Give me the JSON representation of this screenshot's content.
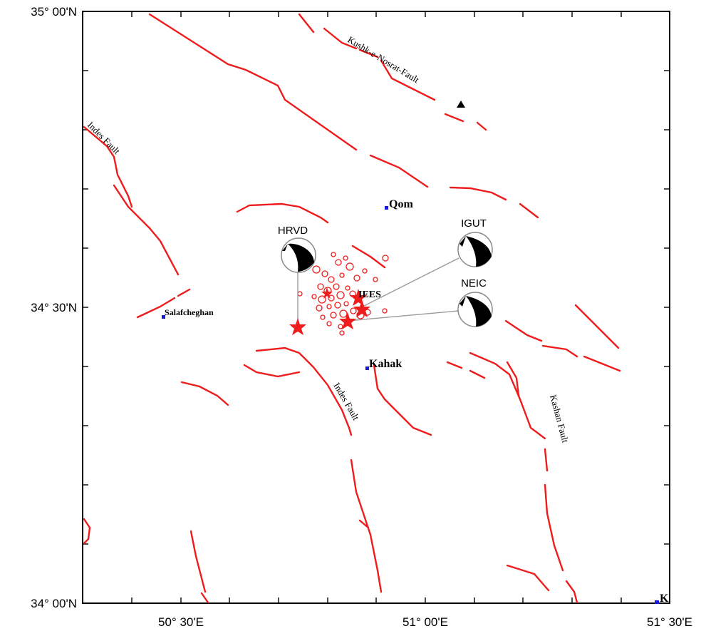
{
  "map": {
    "lon_range": [
      50.25,
      51.5
    ],
    "lat_range": [
      34.0,
      35.0
    ],
    "axis_labels": {
      "lat_top": "35° 00'N",
      "lat_mid": "34° 30'N",
      "lat_bottom": "34° 00'N",
      "lon_left": "50° 30'E",
      "lon_mid": "51° 00'E",
      "lon_right": "51° 30'E"
    }
  },
  "cities": [
    {
      "name": "Qom",
      "lon": 50.92,
      "lat": 34.68
    },
    {
      "name": "Salafcheghan",
      "lon": 50.46,
      "lat": 34.48
    },
    {
      "name": "Kahak",
      "lon": 50.87,
      "lat": 34.4
    },
    {
      "name": "K",
      "lon": 51.49,
      "lat": 34.0
    }
  ],
  "fault_names": {
    "kushk": "Kushk-e-Nosrat-Fault",
    "indes_nw": "Indes Fault",
    "indes_s": "Indes Fault",
    "kashan": "Kashan Fault"
  },
  "station_marker": {
    "symbol": "triangle",
    "lon": 51.03,
    "lat": 34.87
  },
  "epicenters": [
    {
      "label": "HRVD",
      "lon": 50.74,
      "lat": 34.47
    },
    {
      "label": "IEES",
      "lon": 50.86,
      "lat": 34.51
    },
    {
      "label": "NEIC",
      "lon": 50.84,
      "lat": 34.48
    }
  ],
  "focal_mechanisms": [
    {
      "agency": "HRVD"
    },
    {
      "agency": "IGUT"
    },
    {
      "agency": "NEIC"
    }
  ],
  "colors": {
    "fault": "#ee1c1c",
    "epicenter_star": "#ee1c1c",
    "aftershock": "#ee1c1c",
    "city_dot": "#1a1ad6",
    "connector": "#9a9a9a"
  }
}
